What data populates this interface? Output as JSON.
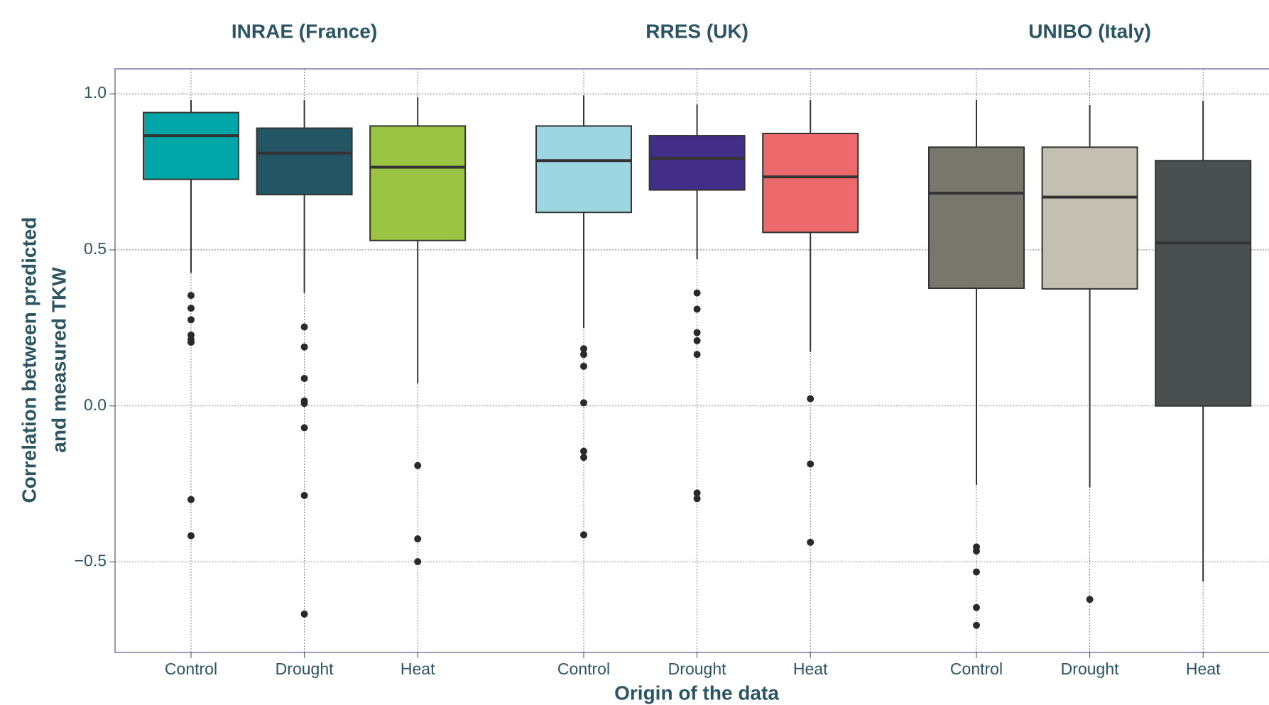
{
  "chart_data": {
    "type": "box",
    "x_label": "Origin of the data",
    "y_label": [
      "Correlation between predicted",
      "and measured TKW"
    ],
    "ylim": [
      -0.79,
      1.08
    ],
    "yticks": [
      {
        "value": 1,
        "label": "1.0"
      },
      0.5,
      {
        "value": 0,
        "label": "0.0"
      },
      {
        "value": -0.5,
        "label": "−0.5"
      }
    ],
    "grid": true,
    "facets": [
      {
        "name": "INRAE (France)",
        "categories": [
          "Control",
          "Drought",
          "Heat"
        ],
        "boxes": [
          {
            "color": "#00a5a8",
            "whisker_low": 0.426,
            "q1": 0.726,
            "median": 0.866,
            "q3": 0.94,
            "whisker_high": 0.98,
            "outliers": [
              0.354,
              0.313,
              0.276,
              0.227,
              0.212,
              0.204,
              -0.3,
              -0.416
            ]
          },
          {
            "color": "#245564",
            "whisker_low": 0.362,
            "q1": 0.677,
            "median": 0.81,
            "q3": 0.89,
            "whisker_high": 0.98,
            "outliers": [
              0.253,
              0.189,
              0.088,
              0.016,
              0.008,
              -0.07,
              -0.287,
              -0.667
            ]
          },
          {
            "color": "#9bc444",
            "whisker_low": 0.072,
            "q1": 0.53,
            "median": 0.765,
            "q3": 0.897,
            "whisker_high": 0.99,
            "outliers": [
              -0.191,
              -0.426,
              -0.499
            ]
          }
        ]
      },
      {
        "name": "RRES (UK)",
        "categories": [
          "Control",
          "Drought",
          "Heat"
        ],
        "boxes": [
          {
            "color": "#9dd5e0",
            "whisker_low": 0.25,
            "q1": 0.62,
            "median": 0.786,
            "q3": 0.897,
            "whisker_high": 0.995,
            "outliers": [
              0.183,
              0.165,
              0.127,
              0.01,
              -0.145,
              -0.165,
              -0.413
            ]
          },
          {
            "color": "#422e86",
            "whisker_low": 0.47,
            "q1": 0.692,
            "median": 0.793,
            "q3": 0.866,
            "whisker_high": 0.966,
            "outliers": [
              0.362,
              0.31,
              0.235,
              0.209,
              0.165,
              -0.279,
              -0.297
            ]
          },
          {
            "color": "#ec6a6b",
            "whisker_low": 0.173,
            "q1": 0.556,
            "median": 0.734,
            "q3": 0.873,
            "whisker_high": 0.98,
            "outliers": [
              0.023,
              -0.186,
              -0.437
            ]
          }
        ]
      },
      {
        "name": "UNIBO (Italy)",
        "categories": [
          "Control",
          "Drought",
          "Heat"
        ],
        "boxes": [
          {
            "color": "#78776e",
            "whisker_low": -0.253,
            "q1": 0.377,
            "median": 0.682,
            "q3": 0.829,
            "whisker_high": 0.98,
            "outliers": [
              -0.452,
              -0.465,
              -0.532,
              -0.646,
              -0.703
            ]
          },
          {
            "color": "#c3bfb1",
            "whisker_low": -0.261,
            "q1": 0.375,
            "median": 0.669,
            "q3": 0.829,
            "whisker_high": 0.964,
            "outliers": [
              -0.62
            ]
          },
          {
            "color": "#4a504f",
            "whisker_low": -0.563,
            "q1": 0,
            "median": 0.522,
            "q3": 0.786,
            "whisker_high": 0.977,
            "outliers": []
          }
        ]
      }
    ]
  }
}
